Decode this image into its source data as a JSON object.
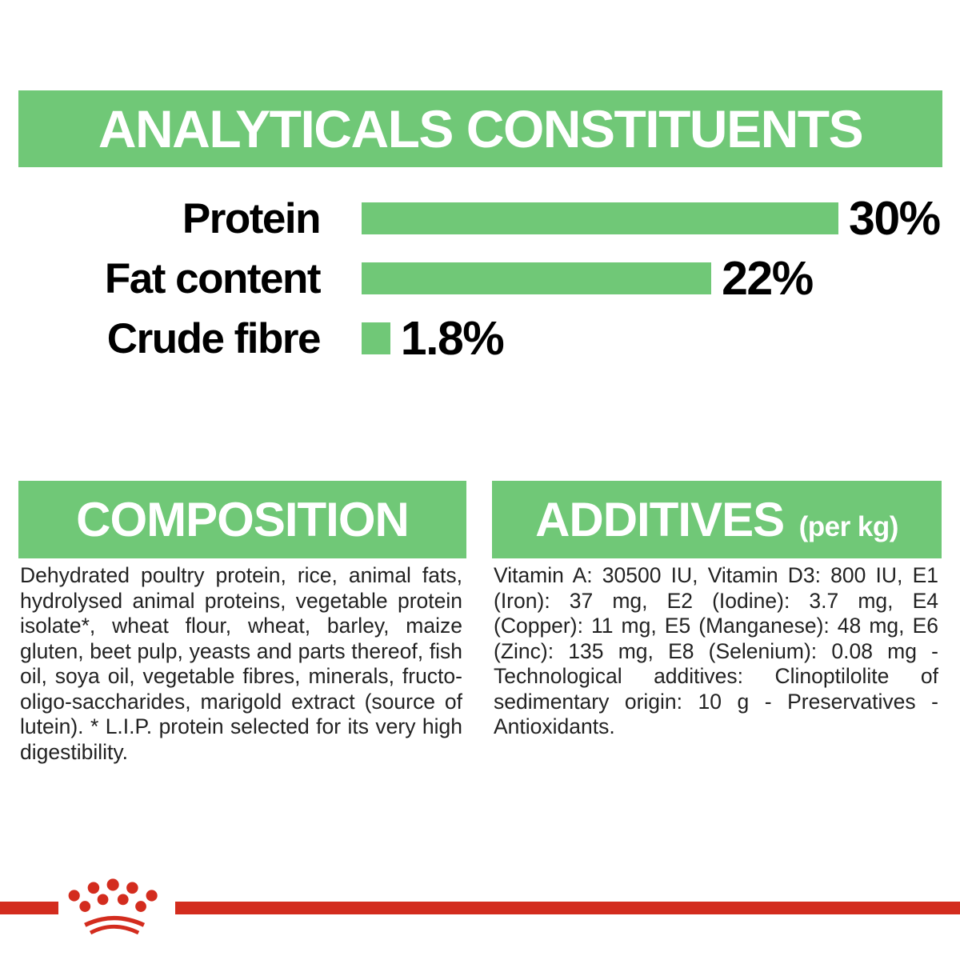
{
  "colors": {
    "green": "#70c877",
    "red": "#d32c1e",
    "text": "#222222",
    "heading_text": "#ffffff",
    "chart_label_text": "#000000"
  },
  "header": {
    "title": "ANALYTICALS CONSTITUENTS"
  },
  "chart_data": {
    "type": "bar",
    "orientation": "horizontal",
    "title": "ANALYTICALS CONSTITUENTS",
    "categories": [
      "Protein",
      "Fat content",
      "Crude fibre"
    ],
    "values": [
      30,
      22,
      1.8
    ],
    "value_labels": [
      "30%",
      "22%",
      "1.8%"
    ],
    "unit": "%",
    "xlim": [
      0,
      30
    ],
    "bar_color": "#70c877",
    "grid": false,
    "legend": false
  },
  "composition": {
    "heading": "COMPOSITION",
    "body": "Dehydrated poultry protein, rice, animal fats, hydrolysed animal proteins, vegetable protein isolate*, wheat flour, wheat, barley, maize gluten, beet pulp, yeasts and parts thereof, fish oil, soya oil, vegetable fibres, minerals, fructo-oligo-saccharides, marigold extract (source of lutein). * L.I.P. protein selected for its very high digestibility."
  },
  "additives": {
    "heading": "ADDITIVES",
    "heading_suffix": "(per kg)",
    "body": "Vitamin A: 30500 IU, Vitamin D3: 800 IU, E1 (Iron): 37 mg, E2 (Iodine): 3.7 mg, E4 (Copper): 11 mg, E5 (Manganese): 48 mg, E6 (Zinc): 135 mg, E8 (Selenium): 0.08 mg - Technological additives: Clinoptilolite of sedimentary origin: 10 g - Preservatives - Antioxidants."
  },
  "footer": {
    "logo_icon": "royal-canin-crown"
  }
}
